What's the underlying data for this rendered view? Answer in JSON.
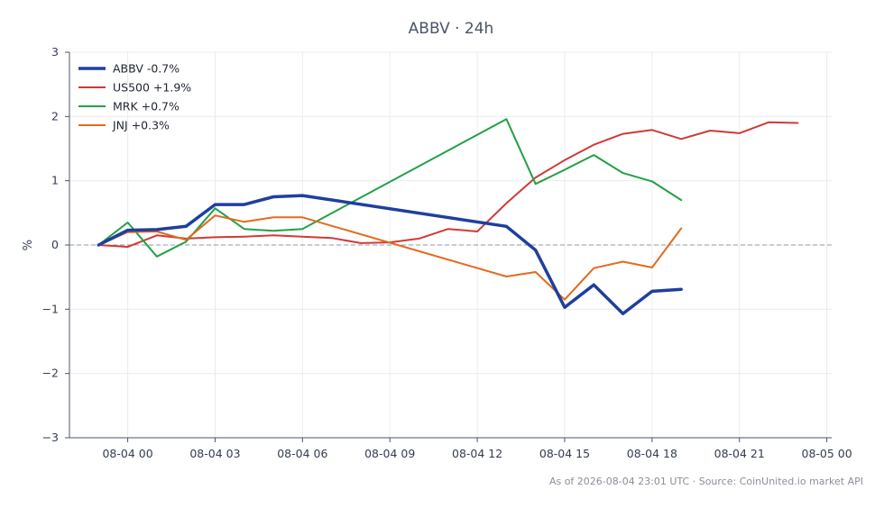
{
  "chart_data": {
    "type": "line",
    "title": "ABBV · 24h",
    "xlabel": "",
    "ylabel": "%",
    "ylim": [
      -3,
      3
    ],
    "xlim": [
      "2026-08-03 22:00",
      "2026-08-05 00:10"
    ],
    "x_ticks": [
      "08-04 00",
      "08-04 03",
      "08-04 06",
      "08-04 09",
      "08-04 12",
      "08-04 15",
      "08-04 18",
      "08-04 21",
      "08-05 00"
    ],
    "y_ticks": [
      "3",
      "2",
      "1",
      "0",
      "−1",
      "−2",
      "−3"
    ],
    "grid": true,
    "reference_line": 0,
    "legend_position": "top-left",
    "series": [
      {
        "name": "ABBV -0.7%",
        "color": "#1f3f9e",
        "x": [
          "2026-08-03 23:00",
          "2026-08-04 00:00",
          "2026-08-04 01:00",
          "2026-08-04 02:00",
          "2026-08-04 03:00",
          "2026-08-04 04:00",
          "2026-08-04 05:00",
          "2026-08-04 06:00",
          "2026-08-04 13:00",
          "2026-08-04 14:00",
          "2026-08-04 15:00",
          "2026-08-04 16:00",
          "2026-08-04 17:00",
          "2026-08-04 18:00",
          "2026-08-04 19:00"
        ],
        "values": [
          0.0,
          0.23,
          0.24,
          0.29,
          0.63,
          0.63,
          0.75,
          0.77,
          0.29,
          -0.08,
          -0.97,
          -0.62,
          -1.07,
          -0.72,
          -0.69
        ]
      },
      {
        "name": "US500 +1.9%",
        "color": "#d03a35",
        "x": [
          "2026-08-03 23:00",
          "2026-08-04 00:00",
          "2026-08-04 01:00",
          "2026-08-04 02:00",
          "2026-08-04 03:00",
          "2026-08-04 04:00",
          "2026-08-04 05:00",
          "2026-08-04 06:00",
          "2026-08-04 07:00",
          "2026-08-04 08:00",
          "2026-08-04 09:00",
          "2026-08-04 10:00",
          "2026-08-04 11:00",
          "2026-08-04 12:00",
          "2026-08-04 13:00",
          "2026-08-04 14:00",
          "2026-08-04 15:00",
          "2026-08-04 16:00",
          "2026-08-04 17:00",
          "2026-08-04 18:00",
          "2026-08-04 19:00",
          "2026-08-04 20:00",
          "2026-08-04 21:00",
          "2026-08-04 22:00",
          "2026-08-04 23:00"
        ],
        "values": [
          0.0,
          -0.03,
          0.15,
          0.1,
          0.12,
          0.13,
          0.15,
          0.13,
          0.11,
          0.03,
          0.04,
          0.1,
          0.25,
          0.21,
          0.65,
          1.05,
          1.32,
          1.56,
          1.73,
          1.79,
          1.65,
          1.78,
          1.74,
          1.91,
          1.9
        ]
      },
      {
        "name": "MRK +0.7%",
        "color": "#22a046",
        "x": [
          "2026-08-03 23:00",
          "2026-08-04 00:00",
          "2026-08-04 01:00",
          "2026-08-04 02:00",
          "2026-08-04 03:00",
          "2026-08-04 04:00",
          "2026-08-04 05:00",
          "2026-08-04 06:00",
          "2026-08-04 13:00",
          "2026-08-04 14:00",
          "2026-08-04 15:00",
          "2026-08-04 16:00",
          "2026-08-04 17:00",
          "2026-08-04 18:00",
          "2026-08-04 19:00"
        ],
        "values": [
          0.0,
          0.35,
          -0.18,
          0.05,
          0.57,
          0.25,
          0.22,
          0.25,
          1.96,
          0.95,
          1.17,
          1.4,
          1.12,
          0.99,
          0.7
        ]
      },
      {
        "name": "JNJ +0.3%",
        "color": "#e36a1e",
        "x": [
          "2026-08-03 23:00",
          "2026-08-04 00:00",
          "2026-08-04 01:00",
          "2026-08-04 02:00",
          "2026-08-04 03:00",
          "2026-08-04 04:00",
          "2026-08-04 05:00",
          "2026-08-04 06:00",
          "2026-08-04 13:00",
          "2026-08-04 14:00",
          "2026-08-04 15:00",
          "2026-08-04 16:00",
          "2026-08-04 17:00",
          "2026-08-04 18:00",
          "2026-08-04 19:00"
        ],
        "values": [
          0.0,
          0.2,
          0.21,
          0.08,
          0.46,
          0.36,
          0.43,
          0.43,
          -0.49,
          -0.42,
          -0.85,
          -0.36,
          -0.26,
          -0.35,
          0.26
        ]
      }
    ],
    "footnote": "As of 2026-08-04 23:01 UTC · Source: CoinUnited.io market API"
  }
}
